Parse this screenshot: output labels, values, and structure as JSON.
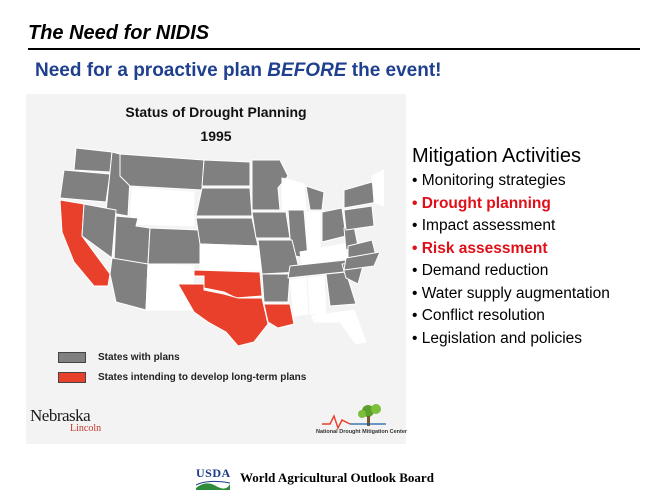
{
  "slide": {
    "title": "The Need for NIDIS",
    "subtitle_pre": "Need for a proactive plan ",
    "subtitle_em": "BEFORE",
    "subtitle_post": " the event!"
  },
  "figure": {
    "title_line1": "Status of Drought Planning",
    "title_line2": "1995",
    "colors": {
      "with_plans": "#808080",
      "intending": "#e8402a",
      "no_plan": "#ffffff",
      "background": "#f3f3f3"
    },
    "legend": [
      {
        "label": "States with plans",
        "color": "#808080"
      },
      {
        "label": "States intending to develop long-term plans",
        "color": "#e8402a"
      }
    ],
    "logos": {
      "nebraska_word": "Nebraska",
      "nebraska_sub": "Lincoln",
      "ndmc_text": "National Drought Mitigation Center"
    }
  },
  "activities": {
    "heading": "Mitigation Activities",
    "items": [
      {
        "label": "• Monitoring strategies",
        "highlight": false
      },
      {
        "label": "• Drought planning",
        "highlight": true
      },
      {
        "label": "• Impact assessment",
        "highlight": false
      },
      {
        "label": "• Risk assessment",
        "highlight": true
      },
      {
        "label": "• Demand reduction",
        "highlight": false
      },
      {
        "label": "• Water supply augmentation",
        "highlight": false
      },
      {
        "label": "• Conflict resolution",
        "highlight": false
      },
      {
        "label": "• Legislation and policies",
        "highlight": false
      }
    ]
  },
  "footer": {
    "usda_logo_text": "USDA",
    "board": "World Agricultural Outlook Board"
  }
}
